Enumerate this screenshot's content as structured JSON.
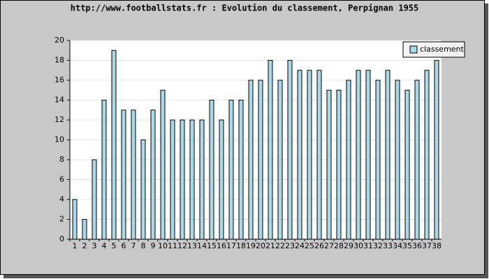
{
  "chart_data": {
    "type": "bar",
    "title": "http://www.footballstats.fr : Evolution du classement, Perpignan 1955",
    "categories": [
      1,
      2,
      3,
      4,
      5,
      6,
      7,
      8,
      9,
      10,
      11,
      12,
      13,
      14,
      15,
      16,
      17,
      18,
      19,
      20,
      21,
      22,
      23,
      24,
      25,
      26,
      27,
      28,
      29,
      30,
      31,
      32,
      33,
      34,
      35,
      36,
      37,
      38
    ],
    "series": [
      {
        "name": "classement",
        "color": "#add8e6",
        "values": [
          4,
          2,
          8,
          14,
          19,
          13,
          13,
          10,
          13,
          15,
          12,
          12,
          12,
          12,
          14,
          12,
          14,
          14,
          16,
          16,
          18,
          16,
          18,
          17,
          17,
          17,
          15,
          15,
          16,
          17,
          17,
          16,
          17,
          16,
          15,
          16,
          17,
          18
        ]
      }
    ],
    "ylim": [
      0,
      20
    ],
    "yticks": [
      0,
      2,
      4,
      6,
      8,
      10,
      12,
      14,
      16,
      18,
      20
    ],
    "grid": true,
    "legend": "top-right"
  }
}
